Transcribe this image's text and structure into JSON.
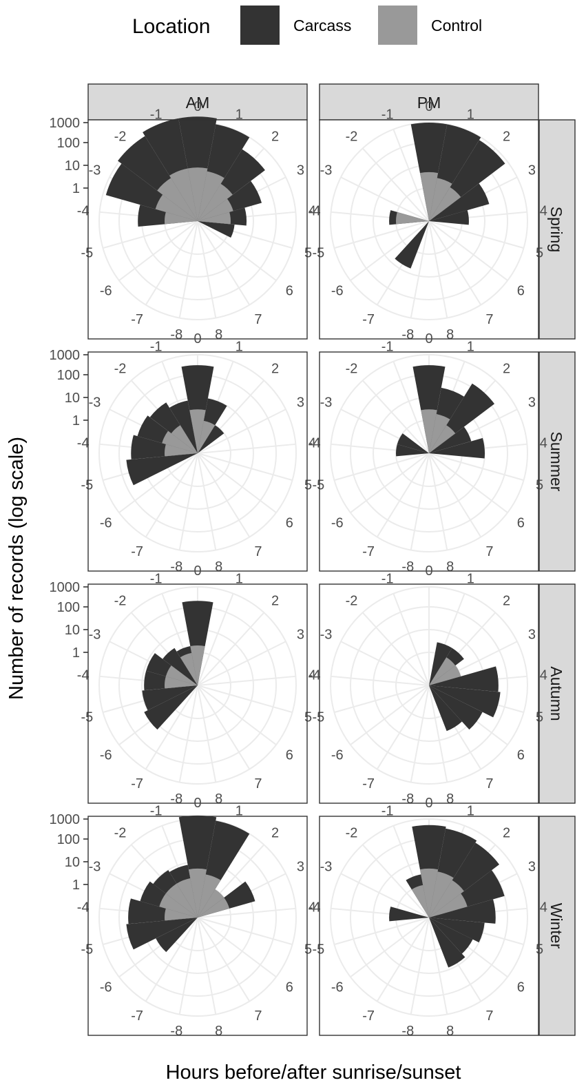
{
  "legend": {
    "title": "Location",
    "items": [
      {
        "label": "Carcass",
        "color": "#333333"
      },
      {
        "label": "Control",
        "color": "#999999"
      }
    ]
  },
  "axes": {
    "xlabel": "Hours before/after sunrise/sunset",
    "ylabel": "Number of records (log scale)"
  },
  "chart_data": {
    "type": "polar-bar",
    "columns": [
      "AM",
      "PM"
    ],
    "rows": [
      "Spring",
      "Summer",
      "Autumn",
      "Winter"
    ],
    "angular_labels": [
      "0",
      "1",
      "2",
      "3",
      "4",
      "5",
      "6",
      "7",
      "8",
      "-8",
      "-7",
      "-6",
      "-5",
      "-4",
      "-3",
      "-2",
      "-1"
    ],
    "radial_ticks": [
      1,
      10,
      100,
      1000
    ],
    "radial_tick_labels": [
      "1",
      "10",
      "100",
      "1000"
    ],
    "scale": "log10",
    "series_names": [
      "Carcass",
      "Control"
    ],
    "series_colors": {
      "Carcass": "#333333",
      "Control": "#999999"
    },
    "panels": [
      {
        "row": "Spring",
        "col": "AM",
        "Carcass": {
          "-4": 15,
          "-3": 700,
          "-2": 1200,
          "-1": 2000,
          "0": 2000,
          "1": 1000,
          "2": 200,
          "3": 30,
          "4": 5,
          "5": 1.5
        },
        "Control": {
          "-4": 1,
          "-3": 3,
          "-2": 6,
          "-1": 8,
          "0": 8,
          "1": 6,
          "2": 3,
          "3": 1.5,
          "4": 1
        }
      },
      {
        "row": "Spring",
        "col": "PM",
        "Carcass": {
          "0": 1000,
          "1": 1000,
          "2": 700,
          "3": 20,
          "4": 2,
          "-7": 6,
          "-4": 2
        },
        "Control": {
          "0": 5,
          "1": 3,
          "2": 2,
          "-4": 1
        }
      },
      {
        "row": "Summer",
        "col": "AM",
        "Carcass": {
          "-5": 50,
          "-4": 30,
          "-3": 20,
          "-2": 15,
          "-1": 8,
          "0": 300,
          "1": 10,
          "2": 1
        },
        "Control": {
          "-4": 1,
          "-3": 1.5,
          "-2": 1,
          "0": 3,
          "1": 1
        }
      },
      {
        "row": "Summer",
        "col": "PM",
        "Carcass": {
          "0": 300,
          "1": 30,
          "2": 150,
          "3": 3,
          "4": 10,
          "-3": 1,
          "-4": 1
        },
        "Control": {
          "0": 3,
          "1": 2,
          "2": 1
        }
      },
      {
        "row": "Autumn",
        "col": "AM",
        "Carcass": {
          "-6": 15,
          "-5": 10,
          "-4": 8,
          "-3": 8,
          "-2": 3,
          "-1": 2,
          "0": 200
        },
        "Control": {
          "-4": 1,
          "-3": 1,
          "-1": 1,
          "0": 2
        }
      },
      {
        "row": "Autumn",
        "col": "PM",
        "Carcass": {
          "1": 3,
          "2": 3,
          "3": 1,
          "4": 40,
          "5": 50,
          "6": 15,
          "7": 5
        },
        "Control": {
          "2": 1,
          "3": 1
        }
      },
      {
        "row": "Winter",
        "col": "AM",
        "Carcass": {
          "0": 1500,
          "1": 1000,
          "2": 1,
          "3": 15,
          "-6": 4,
          "-5": 50,
          "-4": 40,
          "-3": 15,
          "-2": 10,
          "-1": 8
        },
        "Control": {
          "-4": 1,
          "-3": 2,
          "-2": 2,
          "-1": 2,
          "0": 5,
          "1": 3,
          "2": 1,
          "3": 1
        }
      },
      {
        "row": "Winter",
        "col": "PM",
        "Carcass": {
          "-4": 2,
          "-1": 3,
          "0": 500,
          "1": 400,
          "2": 300,
          "3": 100,
          "4": 30,
          "5": 10,
          "6": 5,
          "7": 8
        },
        "Control": {
          "-1": 1,
          "0": 5,
          "1": 4,
          "2": 3,
          "3": 2
        }
      }
    ]
  }
}
